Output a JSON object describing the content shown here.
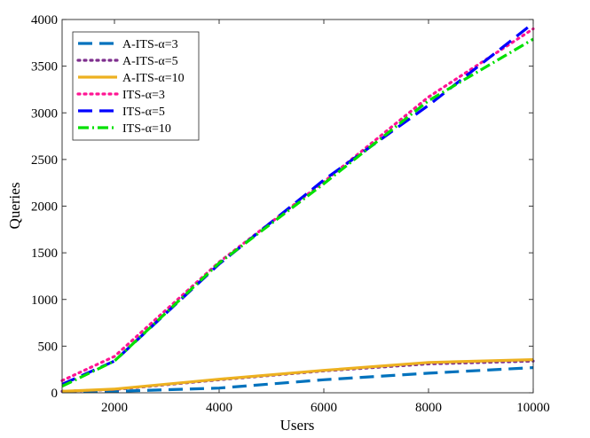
{
  "chart_data": {
    "type": "line",
    "title": "",
    "xlabel": "Users",
    "ylabel": "Queries",
    "xlim": [
      1000,
      10000
    ],
    "ylim": [
      0,
      4000
    ],
    "xticks": [
      2000,
      4000,
      6000,
      8000,
      10000
    ],
    "yticks": [
      0,
      500,
      1000,
      1500,
      2000,
      2500,
      3000,
      3500,
      4000
    ],
    "legend_position": "top-left",
    "x": [
      1000,
      2000,
      4000,
      6000,
      8000,
      10000
    ],
    "series": [
      {
        "name": "A-ITS-α=3",
        "color": "#0072BD",
        "style": "dashed",
        "values": [
          10,
          15,
          50,
          140,
          210,
          270
        ]
      },
      {
        "name": "A-ITS-α=5",
        "color": "#7E2F8E",
        "style": "dotted",
        "values": [
          15,
          35,
          140,
          235,
          310,
          340
        ]
      },
      {
        "name": "A-ITS-α=10",
        "color": "#EDB120",
        "style": "solid",
        "values": [
          15,
          40,
          145,
          240,
          325,
          355
        ]
      },
      {
        "name": "ITS-α=3",
        "color": "#FF1493",
        "style": "dotted",
        "values": [
          130,
          390,
          1400,
          2260,
          3170,
          3900
        ]
      },
      {
        "name": "ITS-α=5",
        "color": "#0000FF",
        "style": "dashed",
        "values": [
          90,
          340,
          1380,
          2280,
          3080,
          3960
        ]
      },
      {
        "name": "ITS-α=10",
        "color": "#00E000",
        "style": "dashdot",
        "values": [
          70,
          340,
          1390,
          2240,
          3130,
          3790
        ]
      }
    ]
  }
}
